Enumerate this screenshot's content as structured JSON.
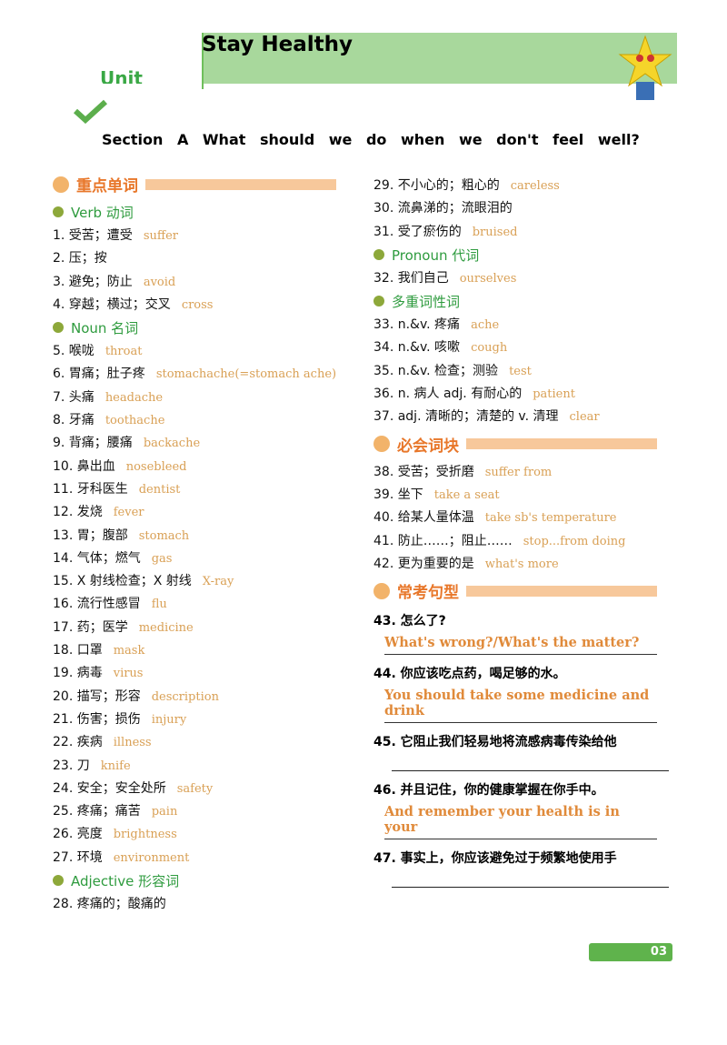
{
  "header": {
    "title": "Stay Healthy",
    "unit": "Unit",
    "section": "Section  A  What should we do when we don't feel well?"
  },
  "left_column": [
    {
      "heading": "重点单词"
    },
    {
      "subheading": "Verb 动词"
    },
    {
      "zh": "1. 受苦；遭受",
      "en": "suffer"
    },
    {
      "zh": "2. 压；按"
    },
    {
      "zh": "3. 避免；防止",
      "en": "avoid"
    },
    {
      "zh": "4. 穿越；横过；交叉",
      "en": "cross"
    },
    {
      "subheading": "Noun 名词"
    },
    {
      "zh": "5. 喉咙",
      "en": "throat"
    },
    {
      "zh": "6. 胃痛；肚子疼",
      "en": "stomachache(=stomach ache)"
    },
    {
      "zh": "7. 头痛",
      "en": "headache"
    },
    {
      "zh": "8. 牙痛",
      "en": "toothache"
    },
    {
      "zh": "9. 背痛；腰痛",
      "en": "backache"
    },
    {
      "zh": "10. 鼻出血",
      "en": "nosebleed"
    },
    {
      "zh": "11. 牙科医生",
      "en": "dentist"
    },
    {
      "zh": "12. 发烧",
      "en": "fever"
    },
    {
      "zh": "13. 胃；腹部",
      "en": "stomach"
    },
    {
      "zh": "14. 气体；燃气",
      "en": "gas"
    },
    {
      "zh": "15. X 射线检查；X 射线",
      "en": "X-ray"
    },
    {
      "zh": "16. 流行性感冒",
      "en": "flu"
    },
    {
      "zh": "17. 药；医学",
      "en": "medicine"
    },
    {
      "zh": "18. 口罩",
      "en": "mask"
    },
    {
      "zh": "19. 病毒",
      "en": "virus"
    },
    {
      "zh": "20. 描写；形容",
      "en": "description"
    },
    {
      "zh": "21. 伤害；损伤",
      "en": "injury"
    },
    {
      "zh": "22. 疾病",
      "en": "illness"
    },
    {
      "zh": "23. 刀",
      "en": "knife"
    },
    {
      "zh": "24. 安全；安全处所",
      "en": "safety"
    },
    {
      "zh": "25. 疼痛；痛苦",
      "en": "pain"
    },
    {
      "zh": "26. 亮度",
      "en": "brightness"
    },
    {
      "zh": "27. 环境",
      "en": "environment"
    },
    {
      "subheading": "Adjective 形容词"
    },
    {
      "zh": "28. 疼痛的；酸痛的"
    }
  ],
  "right_column": [
    {
      "zh": "29. 不小心的；粗心的",
      "en": "careless"
    },
    {
      "zh": "30. 流鼻涕的；流眼泪的"
    },
    {
      "zh": "31. 受了瘀伤的",
      "en": "bruised"
    },
    {
      "subheading": "Pronoun 代词"
    },
    {
      "zh": "32. 我们自己",
      "en": "ourselves"
    },
    {
      "subheading": "多重词性词"
    },
    {
      "zh": "33. n.&v. 疼痛",
      "en": "ache"
    },
    {
      "zh": "34. n.&v. 咳嗽",
      "en": "cough"
    },
    {
      "zh": "35. n.&v. 检查；测验",
      "en": "test"
    },
    {
      "zh": "36. n. 病人 adj. 有耐心的",
      "en": "patient"
    },
    {
      "zh": "37. adj. 清晰的；清楚的 v. 清理",
      "en": "clear"
    },
    {
      "heading": "必会词块"
    },
    {
      "zh": "38. 受苦；受折磨",
      "en": "suffer from"
    },
    {
      "zh": "39. 坐下",
      "en": "take a seat"
    },
    {
      "zh": "40. 给某人量体温",
      "en": "take sb's temperature"
    },
    {
      "zh": "41. 防止……；阻止……",
      "en": "stop...from doing"
    },
    {
      "zh": "42. 更为重要的是",
      "en": "what's more"
    },
    {
      "heading": "常考句型"
    },
    {
      "question": "43. 怎么了?",
      "answer": "What's wrong?/What's the matter?"
    },
    {
      "question": "44. 你应该吃点药，喝足够的水。",
      "answer": "You should take some medicine and drink"
    },
    {
      "question": "45. 它阻止我们轻易地将流感病毒传染给他"
    },
    {
      "question": "46. 并且记住，你的健康掌握在你手中。",
      "answer": "And remember your health is in your"
    },
    {
      "question": "47. 事实上，你应该避免过于频繁地使用手"
    }
  ],
  "footer": {
    "page": "03"
  }
}
